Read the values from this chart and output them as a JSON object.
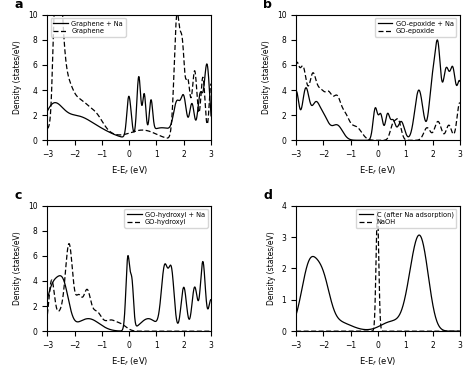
{
  "panel_labels": [
    "a",
    "b",
    "c",
    "d"
  ],
  "xlim": [
    -3,
    3
  ],
  "ylim_abc": [
    0,
    10
  ],
  "ylim_d": [
    0,
    4
  ],
  "xlabel": "E-E$_f$ (eV)",
  "ylabel": "Density (states/eV)",
  "panel_a": {
    "legend": [
      "Graphene + Na",
      "Graphene"
    ],
    "linestyles": [
      "solid",
      "dashed"
    ]
  },
  "panel_b": {
    "legend": [
      "GO-epoxide + Na",
      "GO-epoxide"
    ],
    "linestyles": [
      "solid",
      "dashed"
    ]
  },
  "panel_c": {
    "legend": [
      "GO-hydroxyl + Na",
      "GO-hydroxyl"
    ],
    "linestyles": [
      "solid",
      "dashed"
    ]
  },
  "panel_d": {
    "legend": [
      "C (after Na adsorption)",
      "NaOH"
    ],
    "linestyles": [
      "solid",
      "dashed"
    ]
  }
}
